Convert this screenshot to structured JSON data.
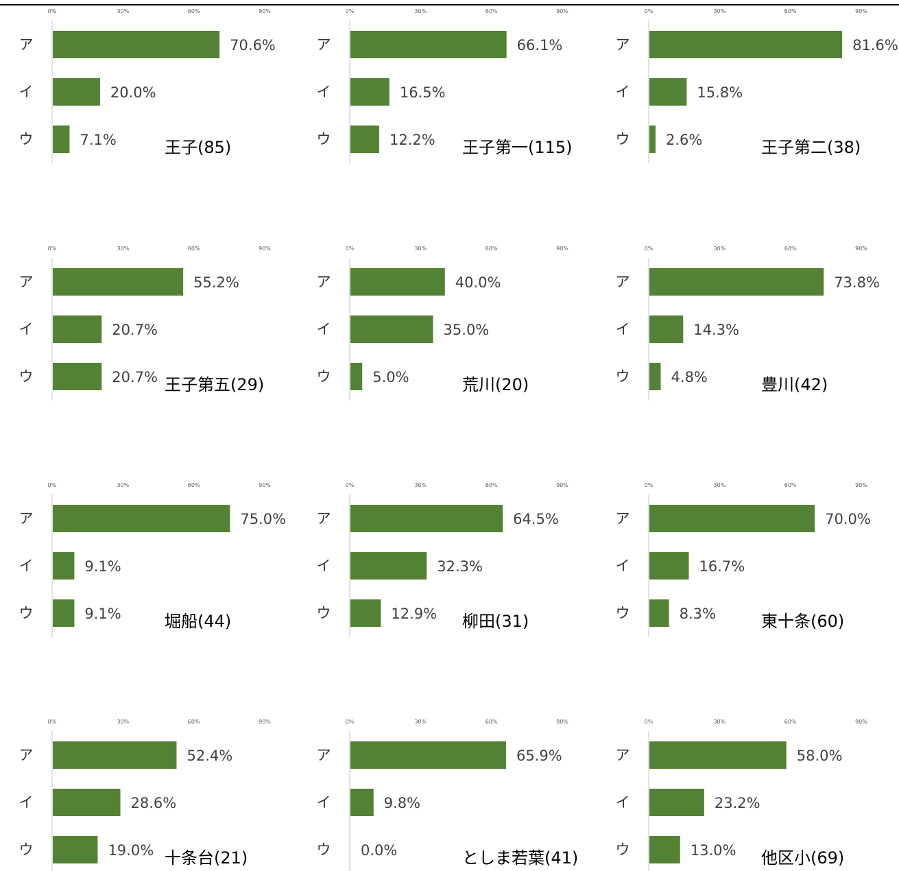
{
  "style": {
    "bar_color": "#548235",
    "axis_color": "#d9d9d9"
  },
  "chart_data": [
    {
      "type": "bar",
      "orientation": "horizontal",
      "title": "王子(85)",
      "categories": [
        "ア",
        "イ",
        "ウ"
      ],
      "values": [
        70.6,
        20.0,
        7.1
      ],
      "value_labels": [
        "70.6%",
        "20.0%",
        "7.1%"
      ],
      "xlim": [
        0,
        90
      ],
      "ticks": [
        "0%",
        "30%",
        "60%",
        "90%"
      ],
      "grid": false
    },
    {
      "type": "bar",
      "orientation": "horizontal",
      "title": "王子第一(115)",
      "categories": [
        "ア",
        "イ",
        "ウ"
      ],
      "values": [
        66.1,
        16.5,
        12.2
      ],
      "value_labels": [
        "66.1%",
        "16.5%",
        "12.2%"
      ],
      "xlim": [
        0,
        90
      ],
      "ticks": [
        "0%",
        "30%",
        "60%",
        "90%"
      ],
      "grid": false
    },
    {
      "type": "bar",
      "orientation": "horizontal",
      "title": "王子第二(38)",
      "categories": [
        "ア",
        "イ",
        "ウ"
      ],
      "values": [
        81.6,
        15.8,
        2.6
      ],
      "value_labels": [
        "81.6%",
        "15.8%",
        "2.6%"
      ],
      "xlim": [
        0,
        90
      ],
      "ticks": [
        "0%",
        "30%",
        "60%",
        "90%"
      ],
      "grid": false
    },
    {
      "type": "bar",
      "orientation": "horizontal",
      "title": "王子第五(29)",
      "categories": [
        "ア",
        "イ",
        "ウ"
      ],
      "values": [
        55.2,
        20.7,
        20.7
      ],
      "value_labels": [
        "55.2%",
        "20.7%",
        "20.7%"
      ],
      "xlim": [
        0,
        90
      ],
      "ticks": [
        "0%",
        "30%",
        "60%",
        "90%"
      ],
      "grid": false
    },
    {
      "type": "bar",
      "orientation": "horizontal",
      "title": "荒川(20)",
      "categories": [
        "ア",
        "イ",
        "ウ"
      ],
      "values": [
        40.0,
        35.0,
        5.0
      ],
      "value_labels": [
        "40.0%",
        "35.0%",
        "5.0%"
      ],
      "xlim": [
        0,
        90
      ],
      "ticks": [
        "0%",
        "30%",
        "60%",
        "90%"
      ],
      "grid": false
    },
    {
      "type": "bar",
      "orientation": "horizontal",
      "title": "豊川(42)",
      "categories": [
        "ア",
        "イ",
        "ウ"
      ],
      "values": [
        73.8,
        14.3,
        4.8
      ],
      "value_labels": [
        "73.8%",
        "14.3%",
        "4.8%"
      ],
      "xlim": [
        0,
        90
      ],
      "ticks": [
        "0%",
        "30%",
        "60%",
        "90%"
      ],
      "grid": false
    },
    {
      "type": "bar",
      "orientation": "horizontal",
      "title": "堀船(44)",
      "categories": [
        "ア",
        "イ",
        "ウ"
      ],
      "values": [
        75.0,
        9.1,
        9.1
      ],
      "value_labels": [
        "75.0%",
        "9.1%",
        "9.1%"
      ],
      "xlim": [
        0,
        90
      ],
      "ticks": [
        "0%",
        "30%",
        "60%",
        "90%"
      ],
      "grid": false
    },
    {
      "type": "bar",
      "orientation": "horizontal",
      "title": "柳田(31)",
      "categories": [
        "ア",
        "イ",
        "ウ"
      ],
      "values": [
        64.5,
        32.3,
        12.9
      ],
      "value_labels": [
        "64.5%",
        "32.3%",
        "12.9%"
      ],
      "xlim": [
        0,
        90
      ],
      "ticks": [
        "0%",
        "30%",
        "60%",
        "90%"
      ],
      "grid": false
    },
    {
      "type": "bar",
      "orientation": "horizontal",
      "title": "東十条(60)",
      "categories": [
        "ア",
        "イ",
        "ウ"
      ],
      "values": [
        70.0,
        16.7,
        8.3
      ],
      "value_labels": [
        "70.0%",
        "16.7%",
        "8.3%"
      ],
      "xlim": [
        0,
        90
      ],
      "ticks": [
        "0%",
        "30%",
        "60%",
        "90%"
      ],
      "grid": false
    },
    {
      "type": "bar",
      "orientation": "horizontal",
      "title": "十条台(21)",
      "categories": [
        "ア",
        "イ",
        "ウ"
      ],
      "values": [
        52.4,
        28.6,
        19.0
      ],
      "value_labels": [
        "52.4%",
        "28.6%",
        "19.0%"
      ],
      "xlim": [
        0,
        90
      ],
      "ticks": [
        "0%",
        "30%",
        "60%",
        "90%"
      ],
      "grid": false
    },
    {
      "type": "bar",
      "orientation": "horizontal",
      "title": "としま若葉(41)",
      "categories": [
        "ア",
        "イ",
        "ウ"
      ],
      "values": [
        65.9,
        9.8,
        0.0
      ],
      "value_labels": [
        "65.9%",
        "9.8%",
        "0.0%"
      ],
      "xlim": [
        0,
        90
      ],
      "ticks": [
        "0%",
        "30%",
        "60%",
        "90%"
      ],
      "grid": false
    },
    {
      "type": "bar",
      "orientation": "horizontal",
      "title": "他区小(69)",
      "categories": [
        "ア",
        "イ",
        "ウ"
      ],
      "values": [
        58.0,
        23.2,
        13.0
      ],
      "value_labels": [
        "58.0%",
        "23.2%",
        "13.0%"
      ],
      "xlim": [
        0,
        90
      ],
      "ticks": [
        "0%",
        "30%",
        "60%",
        "90%"
      ],
      "grid": false
    }
  ]
}
